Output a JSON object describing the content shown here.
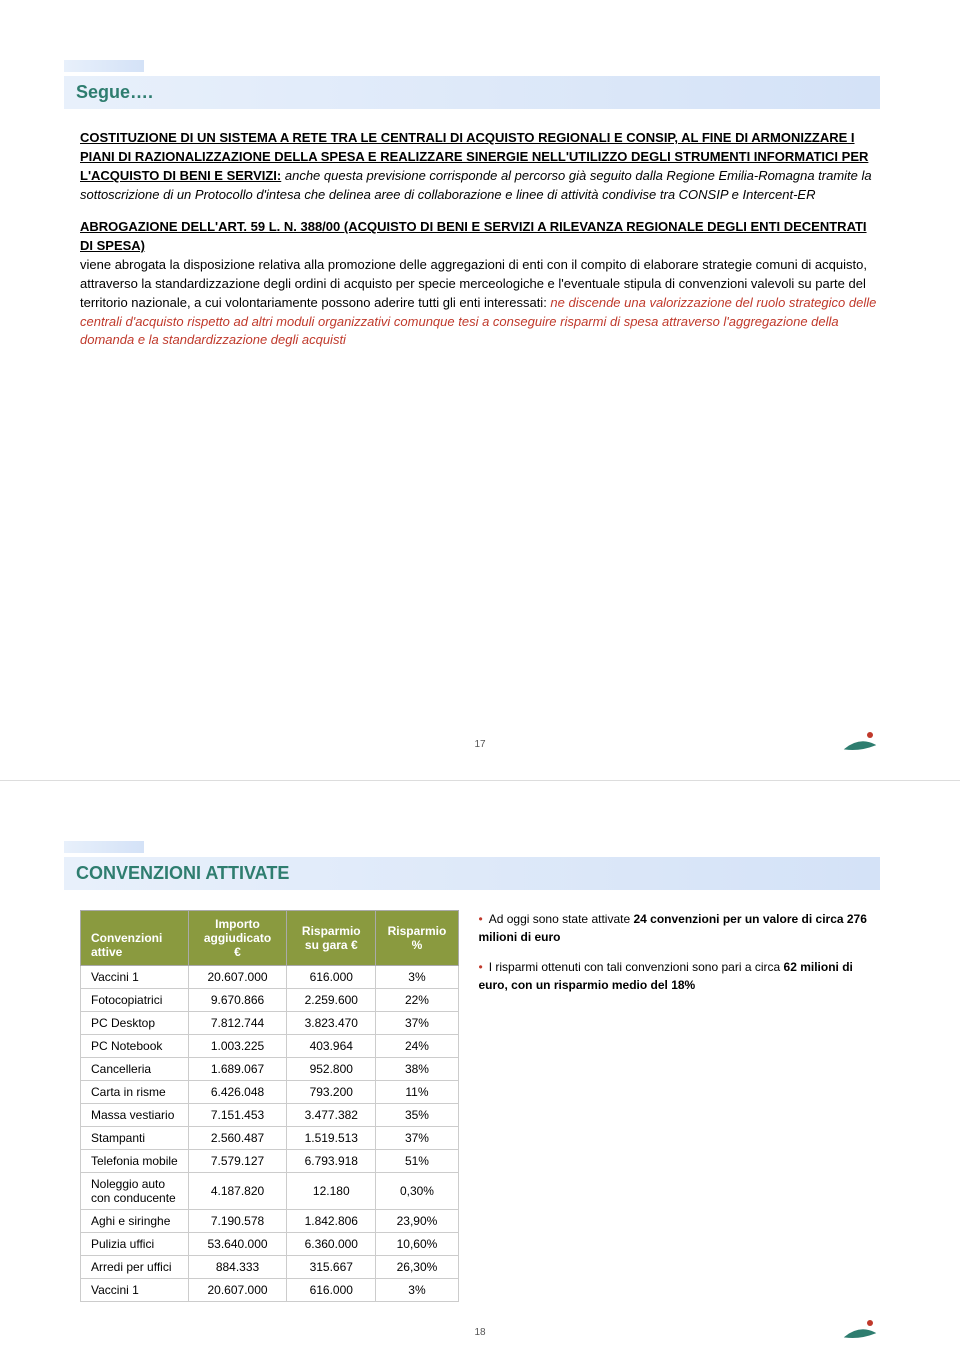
{
  "slide1": {
    "title": "Segue….",
    "para1_heading": "COSTITUZIONE DI UN SISTEMA A RETE TRA LE CENTRALI DI ACQUISTO REGIONALI E CONSIP, AL FINE DI ARMONIZZARE I PIANI DI RAZIONALIZZAZIONE DELLA SPESA E REALIZZARE SINERGIE NELL'UTILIZZO DEGLI STRUMENTI INFORMATICI PER L'ACQUISTO DI BENI E SERVIZI:",
    "para1_italic": " anche questa previsione corrisponde al percorso già seguito dalla Regione Emilia-Romagna  tramite la sottoscrizione di un Protocollo d'intesa che delinea aree di collaborazione e linee di attività condivise tra CONSIP e Intercent-ER",
    "para2_heading": "ABROGAZIONE DELL'ART. 59 L. N. 388/00 (ACQUISTO DI BENI E SERVIZI A RILEVANZA REGIONALE DEGLI ENTI DECENTRATI DI SPESA)",
    "para2_body": "viene abrogata la disposizione relativa alla promozione delle aggregazioni di enti con il compito di elaborare strategie comuni di acquisto, attraverso la standardizzazione degli ordini di acquisto per specie merceologiche e l'eventuale stipula di convenzioni valevoli su parte del territorio nazionale, a cui volontariamente possono aderire tutti gli enti interessati: ",
    "para2_red": "ne discende una valorizzazione del ruolo strategico delle centrali d'acquisto rispetto ad altri moduli organizzativi comunque tesi a conseguire risparmi di spesa attraverso l'aggregazione della domanda e la standardizzazione degli acquisti",
    "page_num": "17"
  },
  "slide2": {
    "title": "CONVENZIONI ATTIVATE",
    "headers": {
      "h1": "Convenzioni attive",
      "h2": "Importo aggiudicato €",
      "h3": "Risparmio su gara €",
      "h4": "Risparmio %"
    },
    "rows": [
      {
        "c1": "Vaccini 1",
        "c2": "20.607.000",
        "c3": "616.000",
        "c4": "3%"
      },
      {
        "c1": "Fotocopiatrici",
        "c2": "9.670.866",
        "c3": "2.259.600",
        "c4": "22%"
      },
      {
        "c1": "PC Desktop",
        "c2": "7.812.744",
        "c3": "3.823.470",
        "c4": "37%"
      },
      {
        "c1": "PC Notebook",
        "c2": "1.003.225",
        "c3": "403.964",
        "c4": "24%"
      },
      {
        "c1": "Cancelleria",
        "c2": "1.689.067",
        "c3": "952.800",
        "c4": "38%"
      },
      {
        "c1": "Carta in risme",
        "c2": "6.426.048",
        "c3": "793.200",
        "c4": "11%"
      },
      {
        "c1": "Massa vestiario",
        "c2": "7.151.453",
        "c3": "3.477.382",
        "c4": "35%"
      },
      {
        "c1": "Stampanti",
        "c2": "2.560.487",
        "c3": "1.519.513",
        "c4": "37%"
      },
      {
        "c1": "Telefonia mobile",
        "c2": "7.579.127",
        "c3": "6.793.918",
        "c4": "51%"
      },
      {
        "c1": "Noleggio auto con conducente",
        "c2": "4.187.820",
        "c3": "12.180",
        "c4": "0,30%"
      },
      {
        "c1": "Aghi e siringhe",
        "c2": "7.190.578",
        "c3": "1.842.806",
        "c4": "23,90%"
      },
      {
        "c1": "Pulizia uffici",
        "c2": "53.640.000",
        "c3": "6.360.000",
        "c4": "10,60%"
      },
      {
        "c1": "Arredi per uffici",
        "c2": "884.333",
        "c3": "315.667",
        "c4": "26,30%"
      },
      {
        "c1": "Vaccini 1",
        "c2": "20.607.000",
        "c3": "616.000",
        "c4": "3%"
      }
    ],
    "bullet1_a": "Ad oggi sono state attivate ",
    "bullet1_b": "24 convenzioni per un valore di circa 276 milioni di euro",
    "bullet2_a": "I risparmi ottenuti con tali convenzioni sono pari a circa ",
    "bullet2_b": "62 milioni di euro, con un risparmio medio del 18%",
    "page_num": "18"
  },
  "logo_colors": {
    "red_dot": "#c0392b",
    "green": "#2e7d6f"
  }
}
